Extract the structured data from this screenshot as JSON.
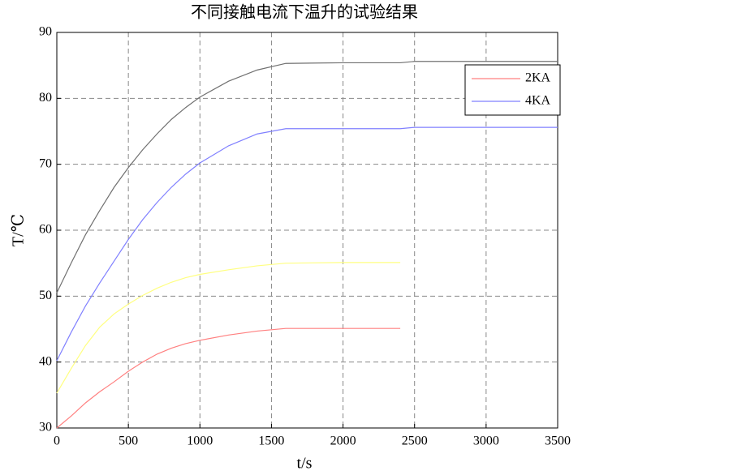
{
  "chart_data": {
    "type": "line",
    "title": "不同接触电流下温升的试验结果",
    "xlabel": "t/s",
    "ylabel": "T/℃",
    "x": [
      0,
      100,
      200,
      300,
      400,
      500,
      600,
      700,
      800,
      900,
      1000,
      1200,
      1400,
      1600,
      2000,
      2400,
      2500,
      3000,
      3500
    ],
    "series": [
      {
        "name": "2KA",
        "color": "#ff8080",
        "values": [
          30,
          31.8,
          33.8,
          35.5,
          37,
          38.6,
          40,
          41.2,
          42.1,
          42.8,
          43.3,
          44.1,
          44.7,
          45.1,
          45.1,
          45.1,
          null,
          null,
          null
        ]
      },
      {
        "name": "4KA",
        "color": "#8080ff",
        "values": [
          40.2,
          44.5,
          48.5,
          52,
          55.3,
          58.6,
          61.6,
          64.2,
          66.5,
          68.5,
          70.2,
          72.8,
          74.6,
          75.4,
          75.4,
          75.4,
          75.6,
          75.6,
          75.6
        ]
      },
      {
        "color": "#ffff80",
        "values": [
          35.3,
          39,
          42.5,
          45.3,
          47.3,
          48.8,
          50.1,
          51.2,
          52.1,
          52.8,
          53.3,
          54,
          54.6,
          55,
          55.1,
          55.1,
          null,
          null,
          null
        ]
      },
      {
        "color": "#707070",
        "values": [
          50.5,
          55,
          59.3,
          63,
          66.5,
          69.5,
          72.2,
          74.6,
          76.8,
          78.6,
          80.2,
          82.6,
          84.3,
          85.3,
          85.4,
          85.4,
          85.6,
          85.6,
          85.6
        ]
      }
    ],
    "xlim": [
      0,
      3500
    ],
    "xticks": [
      0,
      500,
      1000,
      1500,
      2000,
      2500,
      3000,
      3500
    ],
    "ylim": [
      30,
      90
    ],
    "yticks": [
      30,
      40,
      50,
      60,
      70,
      80,
      90
    ],
    "grid": true,
    "legend": "upper right"
  }
}
